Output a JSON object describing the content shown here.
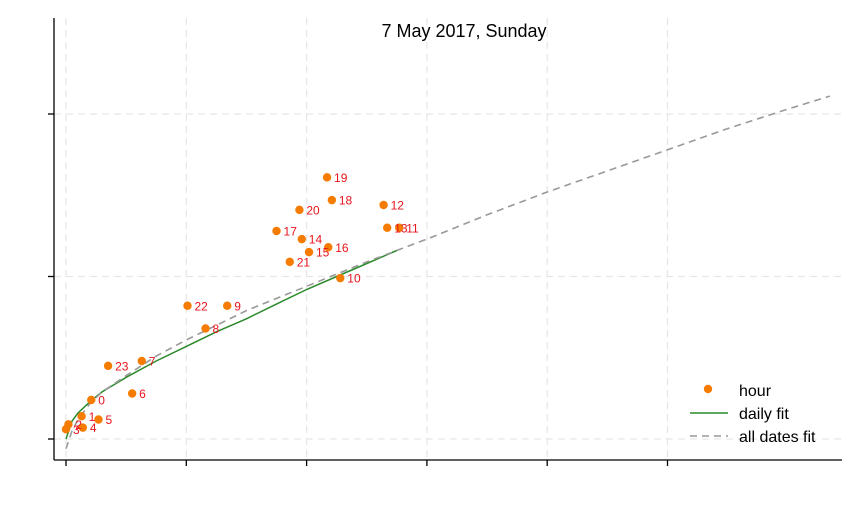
{
  "chart_data": {
    "type": "scatter",
    "title": "7 May 2017, Sunday",
    "xlabel": "",
    "ylabel": "",
    "xlim": [
      -0.1,
      6.5
    ],
    "ylim": [
      -0.12,
      2.62
    ],
    "xticks": [
      0,
      1,
      2,
      3,
      4,
      5
    ],
    "yticks": [
      0,
      1,
      2
    ],
    "grid": true,
    "legend_position": "bottom-right",
    "series": [
      {
        "name": "hour",
        "kind": "points",
        "color": "#f57c00",
        "points": [
          {
            "label": "0",
            "x": 0.21,
            "y": 0.24
          },
          {
            "label": "1",
            "x": 0.13,
            "y": 0.14
          },
          {
            "label": "2",
            "x": 0.02,
            "y": 0.09
          },
          {
            "label": "3",
            "x": 0.0,
            "y": 0.06
          },
          {
            "label": "4",
            "x": 0.14,
            "y": 0.07
          },
          {
            "label": "5",
            "x": 0.27,
            "y": 0.12
          },
          {
            "label": "6",
            "x": 0.55,
            "y": 0.28
          },
          {
            "label": "7",
            "x": 0.63,
            "y": 0.48
          },
          {
            "label": "8",
            "x": 1.16,
            "y": 0.68
          },
          {
            "label": "9",
            "x": 1.34,
            "y": 0.82
          },
          {
            "label": "10",
            "x": 2.28,
            "y": 0.99
          },
          {
            "label": "11",
            "x": 2.77,
            "y": 1.3
          },
          {
            "label": "12",
            "x": 2.64,
            "y": 1.44
          },
          {
            "label": "13",
            "x": 2.67,
            "y": 1.3
          },
          {
            "label": "14",
            "x": 1.96,
            "y": 1.23
          },
          {
            "label": "15",
            "x": 2.02,
            "y": 1.15
          },
          {
            "label": "16",
            "x": 2.18,
            "y": 1.18
          },
          {
            "label": "17",
            "x": 1.75,
            "y": 1.28
          },
          {
            "label": "18",
            "x": 2.21,
            "y": 1.47
          },
          {
            "label": "19",
            "x": 2.17,
            "y": 1.61
          },
          {
            "label": "20",
            "x": 1.94,
            "y": 1.41
          },
          {
            "label": "21",
            "x": 1.86,
            "y": 1.09
          },
          {
            "label": "22",
            "x": 1.01,
            "y": 0.82
          },
          {
            "label": "23",
            "x": 0.35,
            "y": 0.45
          }
        ]
      },
      {
        "name": "daily fit",
        "kind": "line",
        "color": "#2a8a2a",
        "dash": "solid",
        "points": [
          [
            0.0,
            0.0
          ],
          [
            0.05,
            0.11
          ],
          [
            0.1,
            0.16
          ],
          [
            0.2,
            0.23
          ],
          [
            0.3,
            0.29
          ],
          [
            0.5,
            0.38
          ],
          [
            0.75,
            0.48
          ],
          [
            1.0,
            0.57
          ],
          [
            1.25,
            0.66
          ],
          [
            1.5,
            0.74
          ],
          [
            1.75,
            0.83
          ],
          [
            2.0,
            0.92
          ],
          [
            2.25,
            1.0
          ],
          [
            2.5,
            1.08
          ],
          [
            2.75,
            1.16
          ]
        ]
      },
      {
        "name": "all dates fit",
        "kind": "line",
        "color": "#999999",
        "dash": "dashed",
        "points": [
          [
            0.0,
            -0.06
          ],
          [
            0.05,
            0.05
          ],
          [
            0.1,
            0.12
          ],
          [
            0.2,
            0.22
          ],
          [
            0.3,
            0.29
          ],
          [
            0.5,
            0.39
          ],
          [
            0.75,
            0.51
          ],
          [
            1.0,
            0.61
          ],
          [
            1.25,
            0.7
          ],
          [
            1.5,
            0.79
          ],
          [
            2.0,
            0.94
          ],
          [
            2.5,
            1.09
          ],
          [
            3.0,
            1.23
          ],
          [
            3.5,
            1.38
          ],
          [
            4.0,
            1.52
          ],
          [
            4.5,
            1.65
          ],
          [
            5.0,
            1.78
          ],
          [
            5.5,
            1.91
          ],
          [
            6.0,
            2.03
          ],
          [
            6.35,
            2.11
          ]
        ]
      }
    ]
  }
}
